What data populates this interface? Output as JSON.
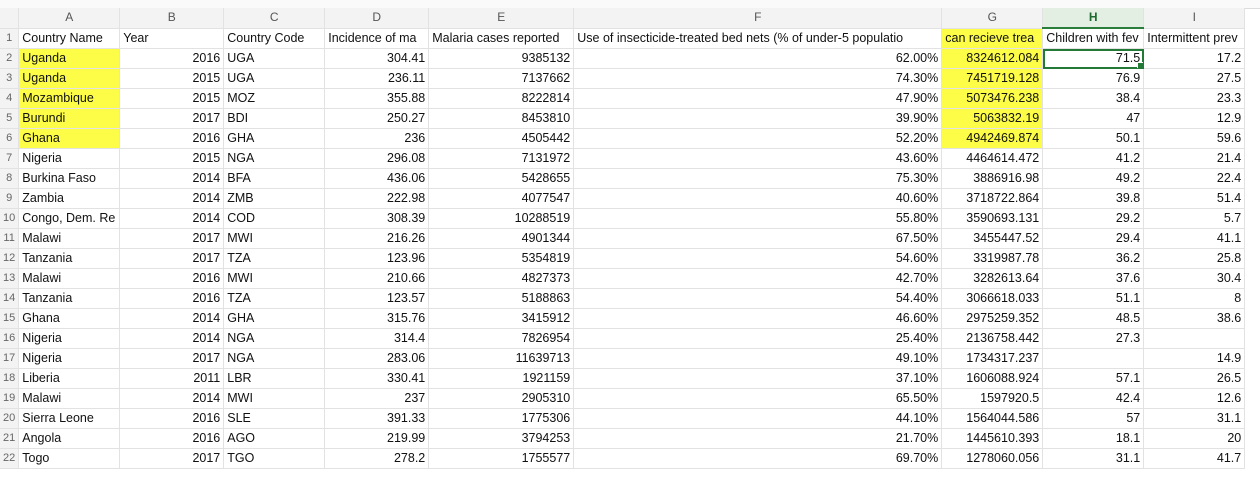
{
  "columns": [
    "A",
    "B",
    "C",
    "D",
    "E",
    "F",
    "G",
    "H",
    "I"
  ],
  "selected_column": "H",
  "highlight_color": "#fdfd47",
  "header_row": {
    "row_number": "1",
    "cells": [
      "Country Name",
      "Year",
      "Country Code",
      "Incidence of ma",
      "Malaria cases reported",
      "Use of insecticide-treated bed nets (% of under-5 populatio",
      "can recieve trea",
      "Children with fev",
      "Intermittent prev"
    ]
  },
  "rows": [
    {
      "row_number": "2",
      "cells": [
        "Uganda",
        "2016",
        "UGA",
        "304.41",
        "9385132",
        "62.00%",
        "8324612.084",
        "71.5",
        "17.2"
      ]
    },
    {
      "row_number": "3",
      "cells": [
        "Uganda",
        "2015",
        "UGA",
        "236.11",
        "7137662",
        "74.30%",
        "7451719.128",
        "76.9",
        "27.5"
      ]
    },
    {
      "row_number": "4",
      "cells": [
        "Mozambique",
        "2015",
        "MOZ",
        "355.88",
        "8222814",
        "47.90%",
        "5073476.238",
        "38.4",
        "23.3"
      ]
    },
    {
      "row_number": "5",
      "cells": [
        "Burundi",
        "2017",
        "BDI",
        "250.27",
        "8453810",
        "39.90%",
        "5063832.19",
        "47",
        "12.9"
      ]
    },
    {
      "row_number": "6",
      "cells": [
        "Ghana",
        "2016",
        "GHA",
        "236",
        "4505442",
        "52.20%",
        "4942469.874",
        "50.1",
        "59.6"
      ]
    },
    {
      "row_number": "7",
      "cells": [
        "Nigeria",
        "2015",
        "NGA",
        "296.08",
        "7131972",
        "43.60%",
        "4464614.472",
        "41.2",
        "21.4"
      ]
    },
    {
      "row_number": "8",
      "cells": [
        "Burkina Faso",
        "2014",
        "BFA",
        "436.06",
        "5428655",
        "75.30%",
        "3886916.98",
        "49.2",
        "22.4"
      ]
    },
    {
      "row_number": "9",
      "cells": [
        "Zambia",
        "2014",
        "ZMB",
        "222.98",
        "4077547",
        "40.60%",
        "3718722.864",
        "39.8",
        "51.4"
      ]
    },
    {
      "row_number": "10",
      "cells": [
        "Congo, Dem. Re",
        "2014",
        "COD",
        "308.39",
        "10288519",
        "55.80%",
        "3590693.131",
        "29.2",
        "5.7"
      ]
    },
    {
      "row_number": "11",
      "cells": [
        "Malawi",
        "2017",
        "MWI",
        "216.26",
        "4901344",
        "67.50%",
        "3455447.52",
        "29.4",
        "41.1"
      ]
    },
    {
      "row_number": "12",
      "cells": [
        "Tanzania",
        "2017",
        "TZA",
        "123.96",
        "5354819",
        "54.60%",
        "3319987.78",
        "36.2",
        "25.8"
      ]
    },
    {
      "row_number": "13",
      "cells": [
        "Malawi",
        "2016",
        "MWI",
        "210.66",
        "4827373",
        "42.70%",
        "3282613.64",
        "37.6",
        "30.4"
      ]
    },
    {
      "row_number": "14",
      "cells": [
        "Tanzania",
        "2016",
        "TZA",
        "123.57",
        "5188863",
        "54.40%",
        "3066618.033",
        "51.1",
        "8"
      ]
    },
    {
      "row_number": "15",
      "cells": [
        "Ghana",
        "2014",
        "GHA",
        "315.76",
        "3415912",
        "46.60%",
        "2975259.352",
        "48.5",
        "38.6"
      ]
    },
    {
      "row_number": "16",
      "cells": [
        "Nigeria",
        "2014",
        "NGA",
        "314.4",
        "7826954",
        "25.40%",
        "2136758.442",
        "27.3",
        ""
      ]
    },
    {
      "row_number": "17",
      "cells": [
        "Nigeria",
        "2017",
        "NGA",
        "283.06",
        "11639713",
        "49.10%",
        "1734317.237",
        "",
        "14.9"
      ]
    },
    {
      "row_number": "18",
      "cells": [
        "Liberia",
        "2011",
        "LBR",
        "330.41",
        "1921159",
        "37.10%",
        "1606088.924",
        "57.1",
        "26.5"
      ]
    },
    {
      "row_number": "19",
      "cells": [
        "Malawi",
        "2014",
        "MWI",
        "237",
        "2905310",
        "65.50%",
        "1597920.5",
        "42.4",
        "12.6"
      ]
    },
    {
      "row_number": "20",
      "cells": [
        "Sierra Leone",
        "2016",
        "SLE",
        "391.33",
        "1775306",
        "44.10%",
        "1564044.586",
        "57",
        "31.1"
      ]
    },
    {
      "row_number": "21",
      "cells": [
        "Angola",
        "2016",
        "AGO",
        "219.99",
        "3794253",
        "21.70%",
        "1445610.393",
        "18.1",
        "20"
      ]
    },
    {
      "row_number": "22",
      "cells": [
        "Togo",
        "2017",
        "TGO",
        "278.2",
        "1755577",
        "69.70%",
        "1278060.056",
        "31.1",
        "41.7"
      ]
    }
  ]
}
